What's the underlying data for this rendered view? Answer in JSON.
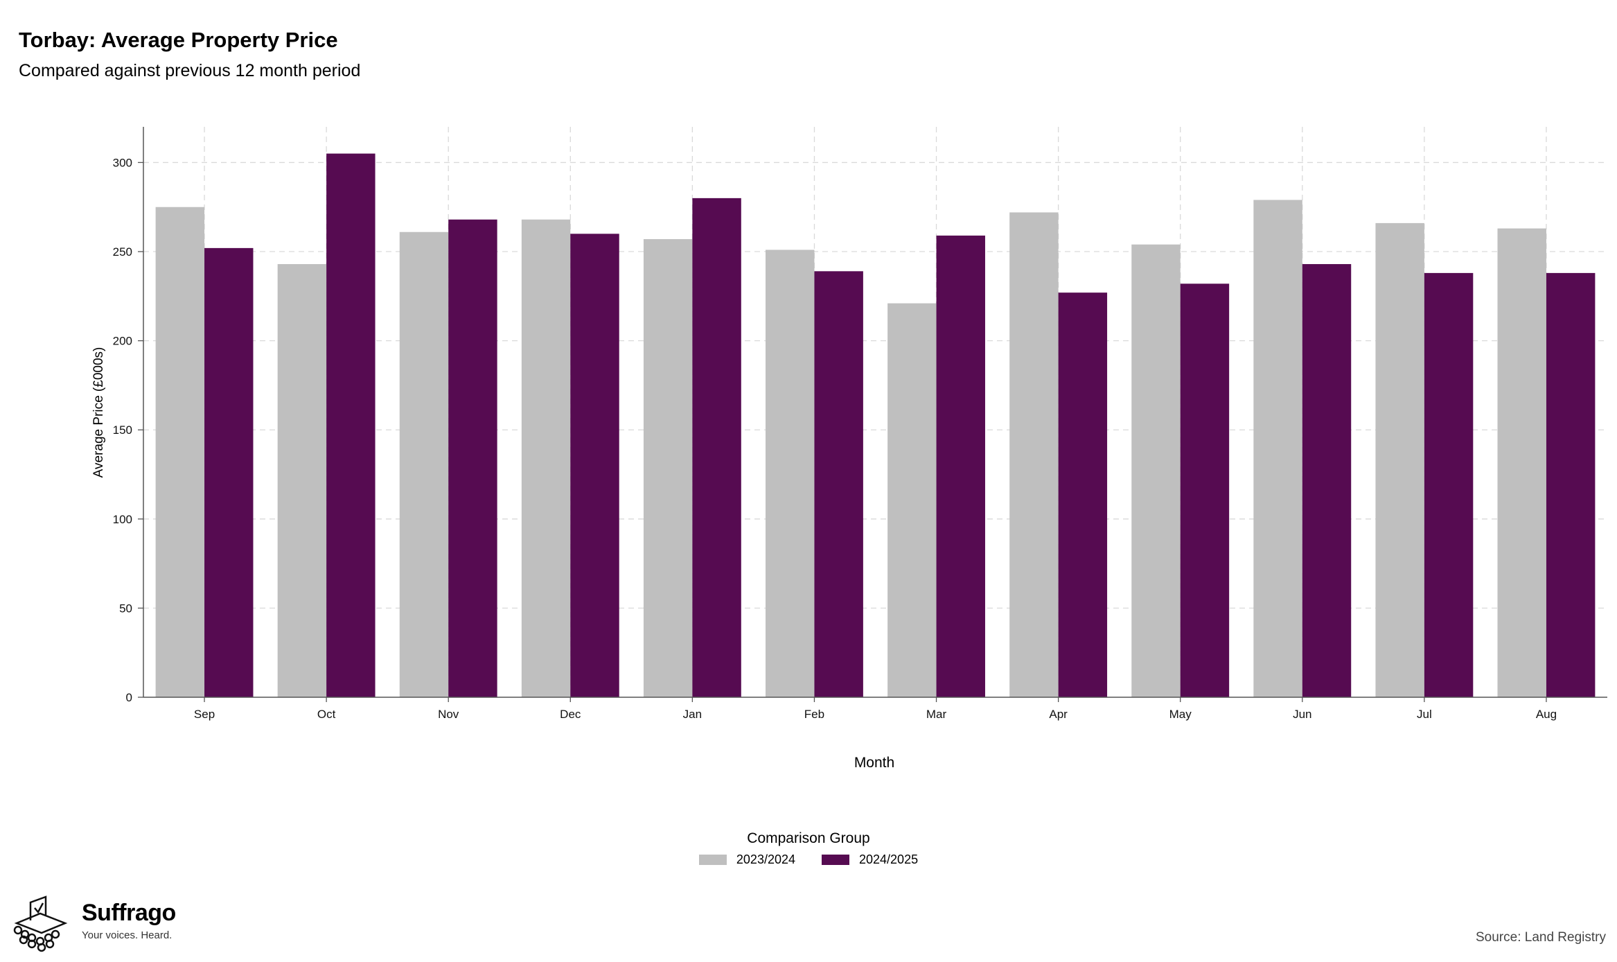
{
  "header": {
    "title": "Torbay: Average Property Price",
    "subtitle": "Compared against previous 12 month period"
  },
  "chart_data": {
    "type": "bar",
    "categories": [
      "Sep",
      "Oct",
      "Nov",
      "Dec",
      "Jan",
      "Feb",
      "Mar",
      "Apr",
      "May",
      "Jun",
      "Jul",
      "Aug"
    ],
    "series": [
      {
        "name": "2023/2024",
        "color": "#bfbfbf",
        "values": [
          275,
          243,
          261,
          268,
          257,
          251,
          221,
          272,
          254,
          279,
          266,
          263
        ]
      },
      {
        "name": "2024/2025",
        "color": "#560b51",
        "values": [
          252,
          305,
          268,
          260,
          280,
          239,
          259,
          227,
          232,
          243,
          238,
          238
        ]
      }
    ],
    "xlabel": "Month",
    "ylabel": "Average Price (£000s)",
    "ylim": [
      0,
      320
    ],
    "yticks": [
      0,
      50,
      100,
      150,
      200,
      250,
      300
    ],
    "grid": true,
    "legend": {
      "title": "Comparison Group",
      "placement": "bottom-center"
    }
  },
  "branding": {
    "name": "Suffrago",
    "tagline": "Your voices. Heard.",
    "icon": "ballot-box-icon"
  },
  "footer": {
    "source": "Source: Land Registry"
  }
}
